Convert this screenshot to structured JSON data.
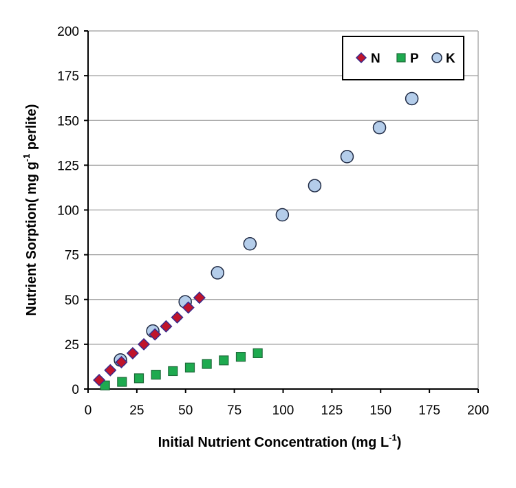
{
  "chart_data": {
    "type": "scatter",
    "title": "",
    "xlabel": "Initial Nutrient Concentration (mg L",
    "xlabel_sup": "-1",
    "xlabel_end": ")",
    "ylabel": "Nutrient Sorption( mg g",
    "ylabel_sup": "-1",
    "ylabel_end": " perlite)",
    "xlim": [
      0,
      200
    ],
    "ylim": [
      0,
      200
    ],
    "xticks": [
      0,
      25,
      50,
      75,
      100,
      125,
      150,
      175,
      200
    ],
    "yticks": [
      0,
      25,
      50,
      75,
      100,
      125,
      150,
      175,
      200
    ],
    "grid": "horizontal",
    "legend_position": "top-right",
    "series": [
      {
        "name": "N",
        "marker": "diamond",
        "color": "#C0142B",
        "edge": "#3A2B8C",
        "x": [
          5.7,
          11.4,
          17.1,
          22.9,
          28.6,
          34.3,
          40.0,
          45.7,
          51.4,
          57.1
        ],
        "y": [
          5,
          10.5,
          15,
          20,
          25,
          30.5,
          35,
          40,
          45.5,
          51
        ]
      },
      {
        "name": "P",
        "marker": "square",
        "color": "#1EAA4F",
        "edge": "#1E6B3A",
        "x": [
          8.7,
          17.4,
          26.1,
          34.8,
          43.5,
          52.2,
          60.9,
          69.6,
          78.3,
          87.0
        ],
        "y": [
          2,
          4,
          6,
          8,
          10,
          12,
          14,
          16,
          18,
          20
        ]
      },
      {
        "name": "K",
        "marker": "circle",
        "color": "#B4CDEA",
        "edge": "#1F2A44",
        "x": [
          16.6,
          33.2,
          49.8,
          66.4,
          83.0,
          99.6,
          116.2,
          132.8,
          149.4,
          166.0
        ],
        "y": [
          16.2,
          32.4,
          48.7,
          64.9,
          81.1,
          97.3,
          113.6,
          129.8,
          146.0,
          162.2
        ]
      }
    ]
  }
}
